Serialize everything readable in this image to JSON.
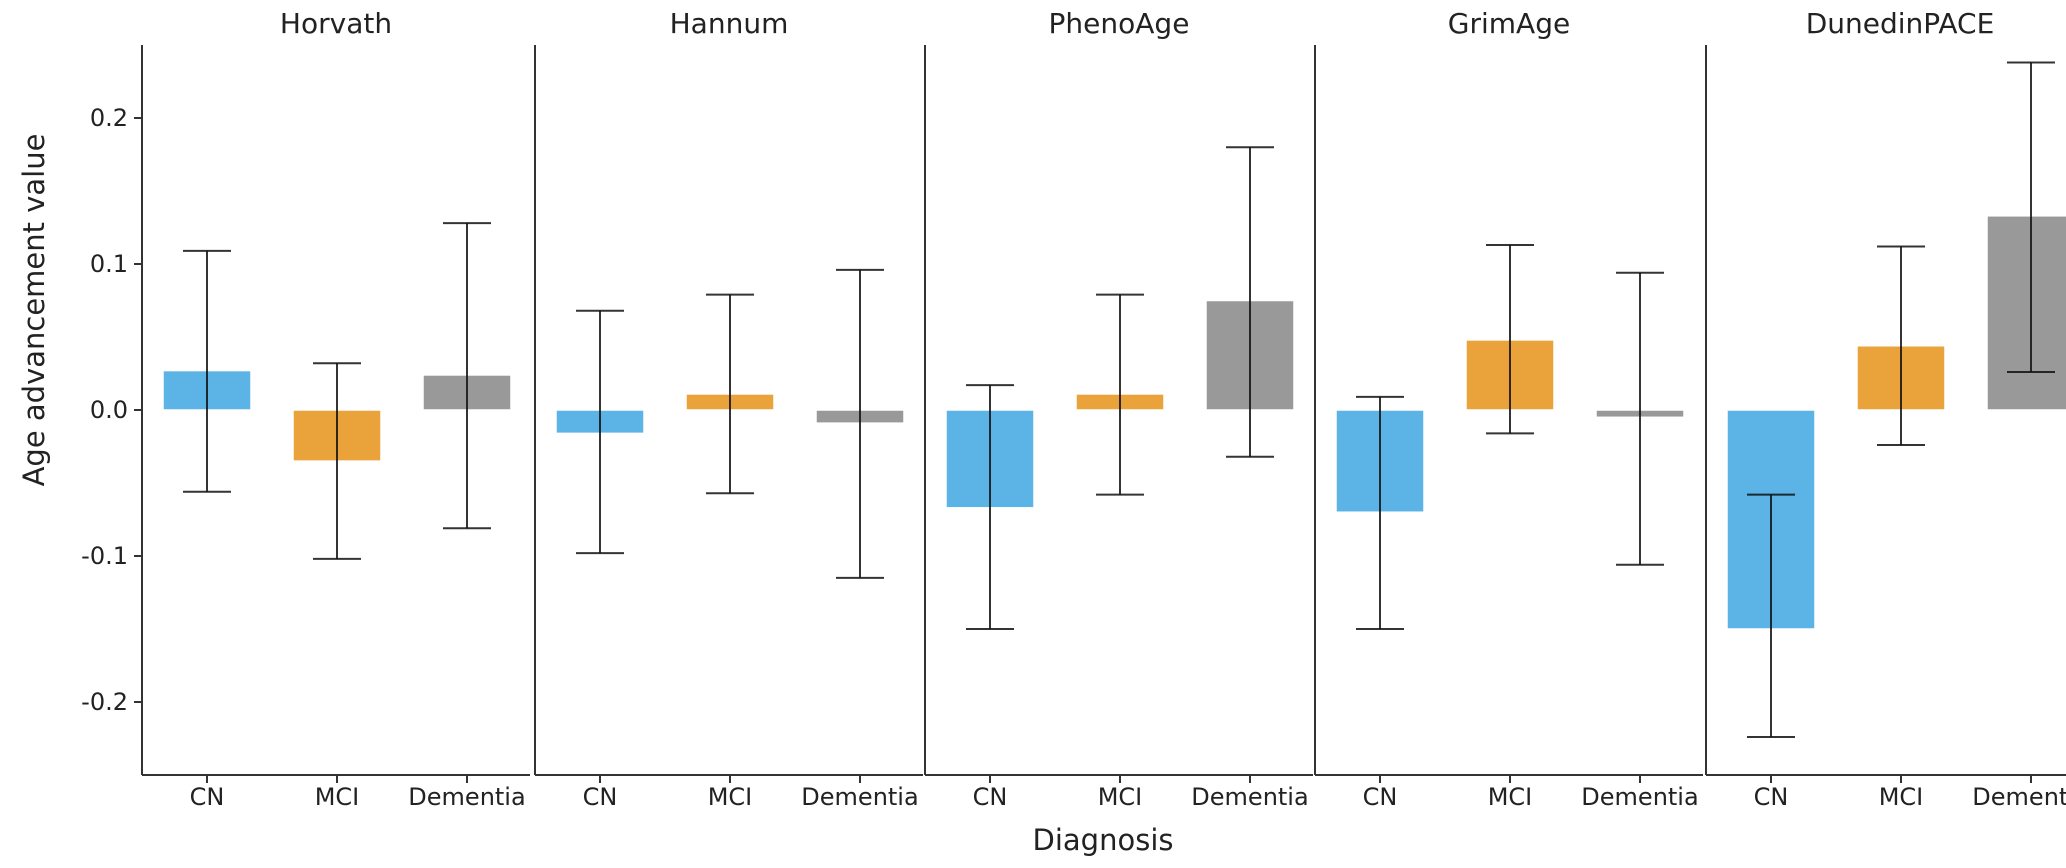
{
  "chart_data": {
    "type": "bar",
    "xlabel": "Diagnosis",
    "ylabel": "Age advancement value",
    "ylim": [
      -0.25,
      0.25
    ],
    "yticks": [
      -0.2,
      -0.1,
      0.0,
      0.1,
      0.2
    ],
    "ytick_labels": [
      "-0.2",
      "-0.1",
      "0.0",
      "0.1",
      "0.2"
    ],
    "categories": [
      "CN",
      "MCI",
      "Dementia"
    ],
    "colors": {
      "CN": "#5BB3E6",
      "MCI": "#E9A33A",
      "Dementia": "#999999"
    },
    "grid": false,
    "error_bars": true,
    "panels": [
      {
        "title": "Horvath",
        "values": [
          0.027,
          -0.035,
          0.024
        ],
        "error_low": [
          -0.056,
          -0.102,
          -0.081
        ],
        "error_high": [
          0.109,
          0.032,
          0.128
        ]
      },
      {
        "title": "Hannum",
        "values": [
          -0.016,
          0.011,
          -0.009
        ],
        "error_low": [
          -0.098,
          -0.057,
          -0.115
        ],
        "error_high": [
          0.068,
          0.079,
          0.096
        ]
      },
      {
        "title": "PhenoAge",
        "values": [
          -0.067,
          0.011,
          0.075
        ],
        "error_low": [
          -0.15,
          -0.058,
          -0.032
        ],
        "error_high": [
          0.017,
          0.079,
          0.18
        ]
      },
      {
        "title": "GrimAge",
        "values": [
          -0.07,
          0.048,
          -0.005
        ],
        "error_low": [
          -0.15,
          -0.016,
          -0.106
        ],
        "error_high": [
          0.009,
          0.113,
          0.094
        ]
      },
      {
        "title": "DunedinPACE",
        "values": [
          -0.15,
          0.044,
          0.133
        ],
        "error_low": [
          -0.224,
          -0.024,
          0.026
        ],
        "error_high": [
          -0.058,
          0.112,
          0.238
        ]
      }
    ]
  }
}
